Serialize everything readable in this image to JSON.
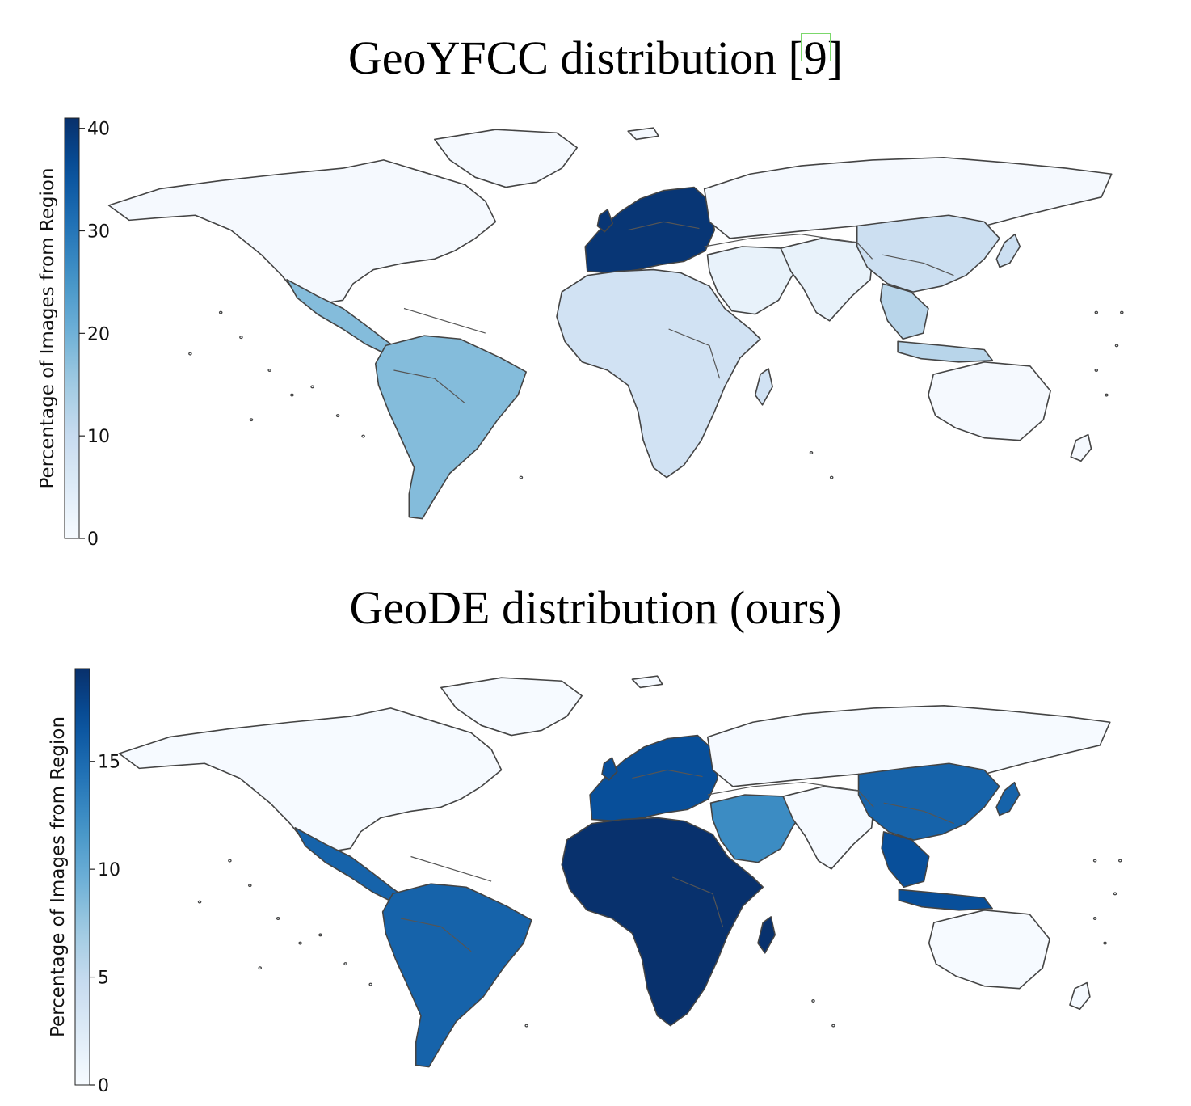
{
  "panels": [
    {
      "title": "GeoYFCC distribution [9]",
      "title_main": "GeoYFCC distribution [",
      "title_ref": "9",
      "title_end": "]",
      "colorbar": {
        "label": "Percentage of Images from Region",
        "min": 0,
        "max": 41,
        "ticks": [
          "0",
          "10",
          "20",
          "30",
          "40"
        ],
        "tick_values": [
          0,
          10,
          20,
          30,
          40
        ]
      },
      "regions": {
        "north_america": 0.5,
        "greenland": 0.5,
        "europe": 40,
        "russia": 0.5,
        "central_america": 18,
        "south_america": 18,
        "africa": 8,
        "west_asia": 3,
        "south_asia": 3,
        "east_asia": 9,
        "southeast_asia": 12,
        "oceania": 0.5
      }
    },
    {
      "title": "GeoDE distribution (ours)",
      "colorbar": {
        "label": "Percentage of Images from Region",
        "min": 0,
        "max": 19.3,
        "ticks": [
          "0",
          "5",
          "10",
          "15"
        ],
        "tick_values": [
          0,
          5,
          10,
          15
        ]
      },
      "regions": {
        "north_america": 0.1,
        "greenland": 0.1,
        "europe": 17,
        "russia": 0.1,
        "central_america": 15.5,
        "south_america": 15.5,
        "africa": 19.2,
        "west_asia": 12.5,
        "south_asia": 0.1,
        "east_asia": 15.5,
        "southeast_asia": 17,
        "oceania": 0.1
      }
    }
  ],
  "colormap": "Blues"
}
